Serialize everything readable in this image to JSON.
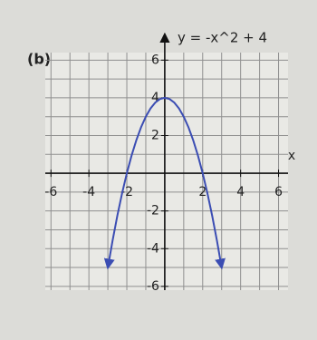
{
  "chart_data": {
    "type": "line",
    "label": "(b)",
    "title": "y = -x^2 + 4",
    "x_label": "x",
    "x": [
      -3,
      -2.75,
      -2.5,
      -2.25,
      -2,
      -1.75,
      -1.5,
      -1.25,
      -1,
      -0.75,
      -0.5,
      -0.25,
      0,
      0.25,
      0.5,
      0.75,
      1,
      1.25,
      1.5,
      1.75,
      2,
      2.25,
      2.5,
      2.75,
      3
    ],
    "series": [
      {
        "color": "#3b4db3",
        "values": [
          -5,
          -3.5625,
          -2.25,
          -1.0625,
          0,
          0.9375,
          1.75,
          2.4375,
          3,
          3.4375,
          3.75,
          3.9375,
          4,
          3.9375,
          3.75,
          3.4375,
          3,
          2.4375,
          1.75,
          0.9375,
          0,
          -1.0625,
          -2.25,
          -3.5625,
          -5
        ]
      }
    ],
    "xlim": [
      -6.3,
      6.5
    ],
    "ylim": [
      -6.2,
      6.4
    ],
    "xticks": [
      -6,
      -4,
      -2,
      2,
      4,
      6
    ],
    "yticks": [
      -6,
      -4,
      -2,
      2,
      4,
      6
    ],
    "xgrid": [
      -6,
      -5,
      -4,
      -3,
      -2,
      -1,
      0,
      1,
      2,
      3,
      4,
      5,
      6
    ],
    "ygrid": [
      -6,
      -5,
      -4,
      -3,
      -2,
      -1,
      0,
      1,
      2,
      3,
      4,
      5,
      6
    ],
    "grid": true
  }
}
